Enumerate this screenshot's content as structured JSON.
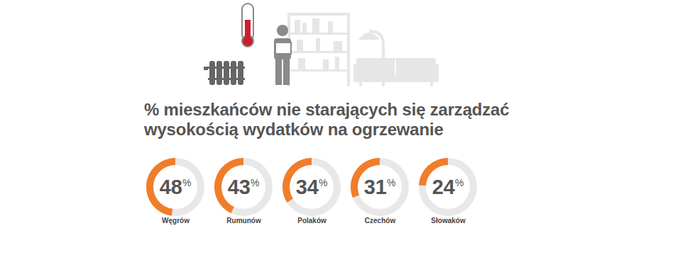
{
  "chart_data": {
    "type": "donut",
    "title": "% mieszkańców nie starających się zarządzać\nwysokością wydatków na ogrzewanie",
    "categories": [
      "Węgrów",
      "Rumunów",
      "Polaków",
      "Czechów",
      "Słowaków"
    ],
    "values": [
      48,
      43,
      34,
      31,
      24
    ],
    "value_labels": [
      "48%",
      "43%",
      "34%",
      "31%",
      "24%"
    ],
    "color": "#f07d29",
    "data_labels": true
  }
}
